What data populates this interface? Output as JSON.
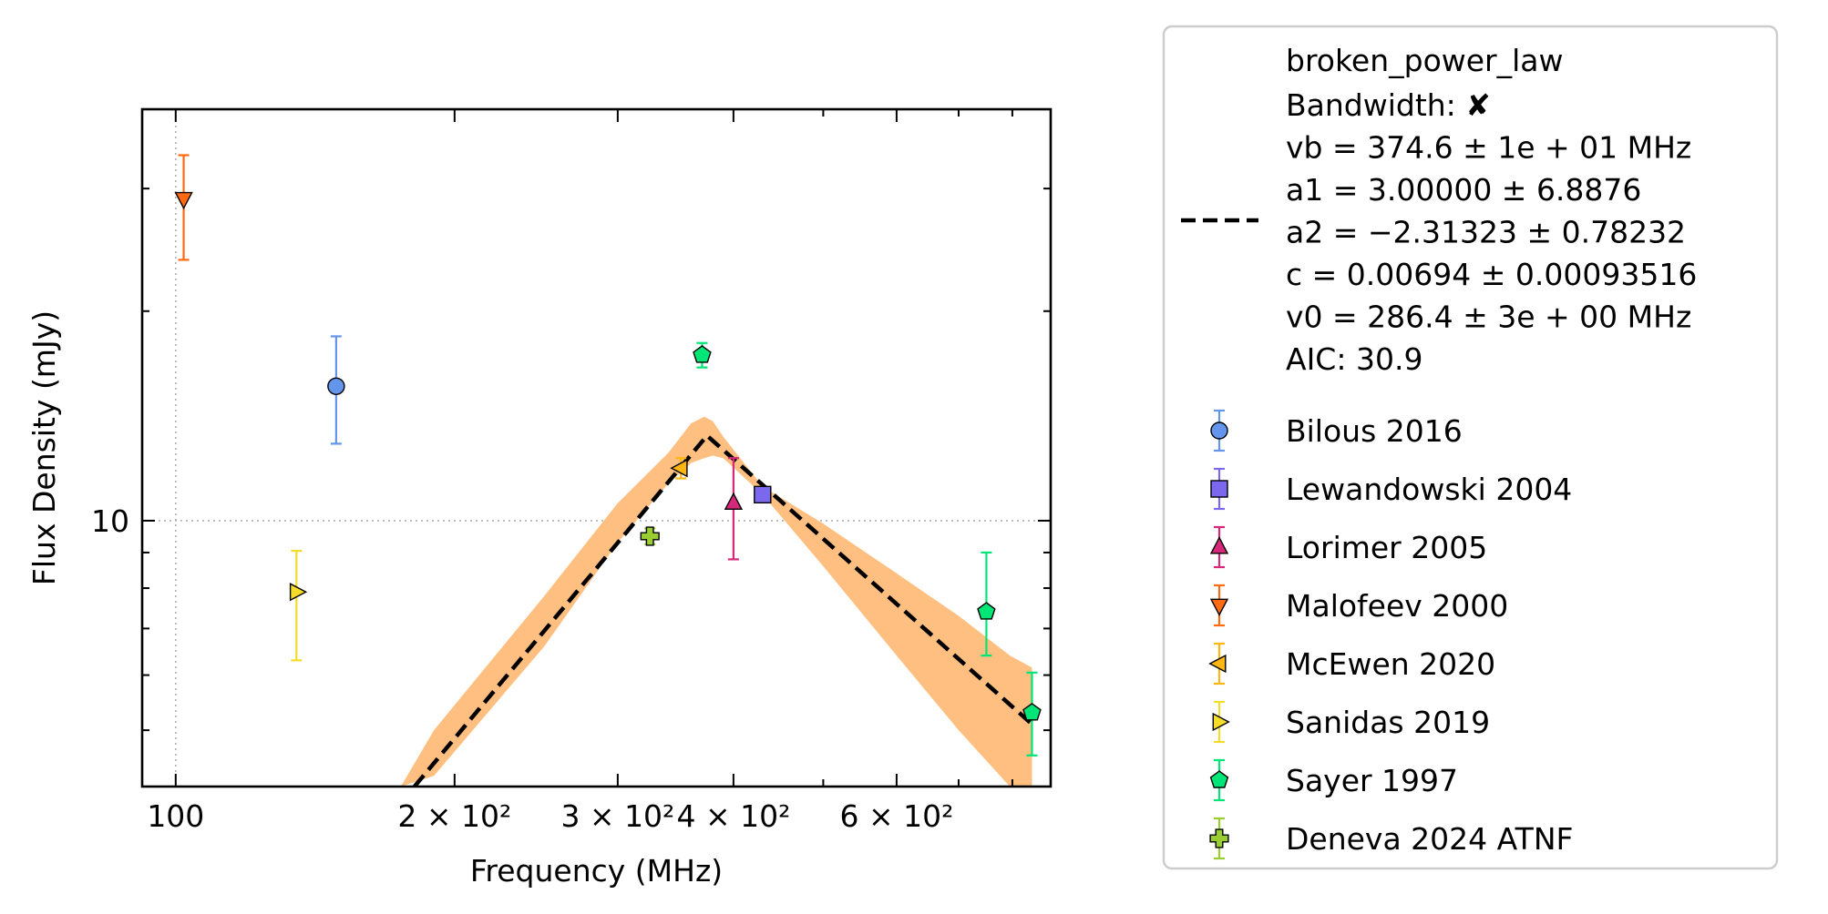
{
  "chart_data": {
    "type": "scatter",
    "title": "",
    "xlabel": "Frequency (MHz)",
    "ylabel": "Flux Density (mJy)",
    "xscale": "log",
    "yscale": "log",
    "xlim": [
      92,
      880
    ],
    "ylim": [
      4.15,
      39
    ],
    "grid": "dotted lines at x=100 and y=10",
    "x_ticks": [
      {
        "value": 100,
        "label": "100"
      },
      {
        "value": 200,
        "label": "2 × 10²"
      },
      {
        "value": 300,
        "label": "3 × 10²"
      },
      {
        "value": 400,
        "label": "4 × 10²"
      },
      {
        "value": 600,
        "label": "6 × 10²"
      }
    ],
    "y_ticks": [
      {
        "value": 10,
        "label": "10"
      }
    ],
    "legend_position": "outside-right",
    "fit": {
      "label": "broken_power_law",
      "line_style": "dashed",
      "color": "#000000",
      "band_color": "#ffbf80",
      "params": [
        "Bandwidth: ✘",
        "vb = 374.6 ± 1e + 01 MHz",
        "a1 = 3.00000 ± 6.8876",
        "a2 = −2.31323 ± 0.78232",
        "c = 0.00694 ± 0.00093516",
        "v0 = 286.4 ± 3e + 00 MHz",
        "AIC: 30.9"
      ],
      "curve": {
        "x": [
          181,
          374.6,
          840
        ],
        "y": [
          4.15,
          13.25,
          5.1
        ]
      },
      "band": {
        "x": [
          175,
          190,
          250,
          300,
          340,
          360,
          372,
          380,
          390,
          430,
          500,
          600,
          700,
          795,
          840
        ],
        "upper": [
          4.15,
          5.0,
          7.8,
          10.6,
          12.5,
          13.8,
          14.1,
          13.9,
          13.2,
          11.2,
          9.9,
          8.4,
          7.3,
          6.4,
          6.15
        ],
        "lower": [
          4.15,
          4.3,
          6.6,
          9.3,
          11.3,
          12.1,
          12.3,
          12.4,
          12.3,
          10.9,
          8.6,
          6.4,
          5.0,
          4.15,
          4.15
        ]
      }
    },
    "series": [
      {
        "name": "Bilous 2016",
        "marker": "circle",
        "color": "#6495ed",
        "points": [
          {
            "x": 149,
            "y": 15.6,
            "yerr_low": 12.9,
            "yerr_high": 18.4
          }
        ]
      },
      {
        "name": "Lewandowski 2004",
        "marker": "square",
        "color": "#7b68ee",
        "points": [
          {
            "x": 430,
            "y": 10.9,
            "yerr_low": 10.75,
            "yerr_high": 11.05
          }
        ]
      },
      {
        "name": "Lorimer 2005",
        "marker": "triangle-up",
        "color": "#d6287a",
        "points": [
          {
            "x": 400,
            "y": 10.6,
            "yerr_low": 8.8,
            "yerr_high": 12.3
          }
        ]
      },
      {
        "name": "Malofeev 2000",
        "marker": "triangle-down",
        "color": "#ff6a13",
        "points": [
          {
            "x": 102,
            "y": 29.0,
            "yerr_low": 23.7,
            "yerr_high": 33.5
          }
        ]
      },
      {
        "name": "McEwen 2020",
        "marker": "triangle-left",
        "color": "#ffb612",
        "points": [
          {
            "x": 351,
            "y": 11.9,
            "yerr_low": 11.5,
            "yerr_high": 12.3
          }
        ]
      },
      {
        "name": "Sanidas 2019",
        "marker": "triangle-right",
        "color": "#f5dc28",
        "points": [
          {
            "x": 135,
            "y": 7.9,
            "yerr_low": 6.3,
            "yerr_high": 9.05
          }
        ]
      },
      {
        "name": "Sayer 1997",
        "marker": "pentagon",
        "color": "#00e676",
        "points": [
          {
            "x": 370,
            "y": 17.3,
            "yerr_low": 16.6,
            "yerr_high": 18.0
          },
          {
            "x": 750,
            "y": 7.4,
            "yerr_low": 6.4,
            "yerr_high": 9.0
          },
          {
            "x": 840,
            "y": 5.3,
            "yerr_low": 4.6,
            "yerr_high": 6.05
          }
        ]
      },
      {
        "name": "Deneva 2024 ATNF",
        "marker": "plus",
        "color": "#9acd32",
        "points": [
          {
            "x": 325,
            "y": 9.5,
            "yerr_low": 9.25,
            "yerr_high": 9.75
          }
        ]
      }
    ]
  }
}
